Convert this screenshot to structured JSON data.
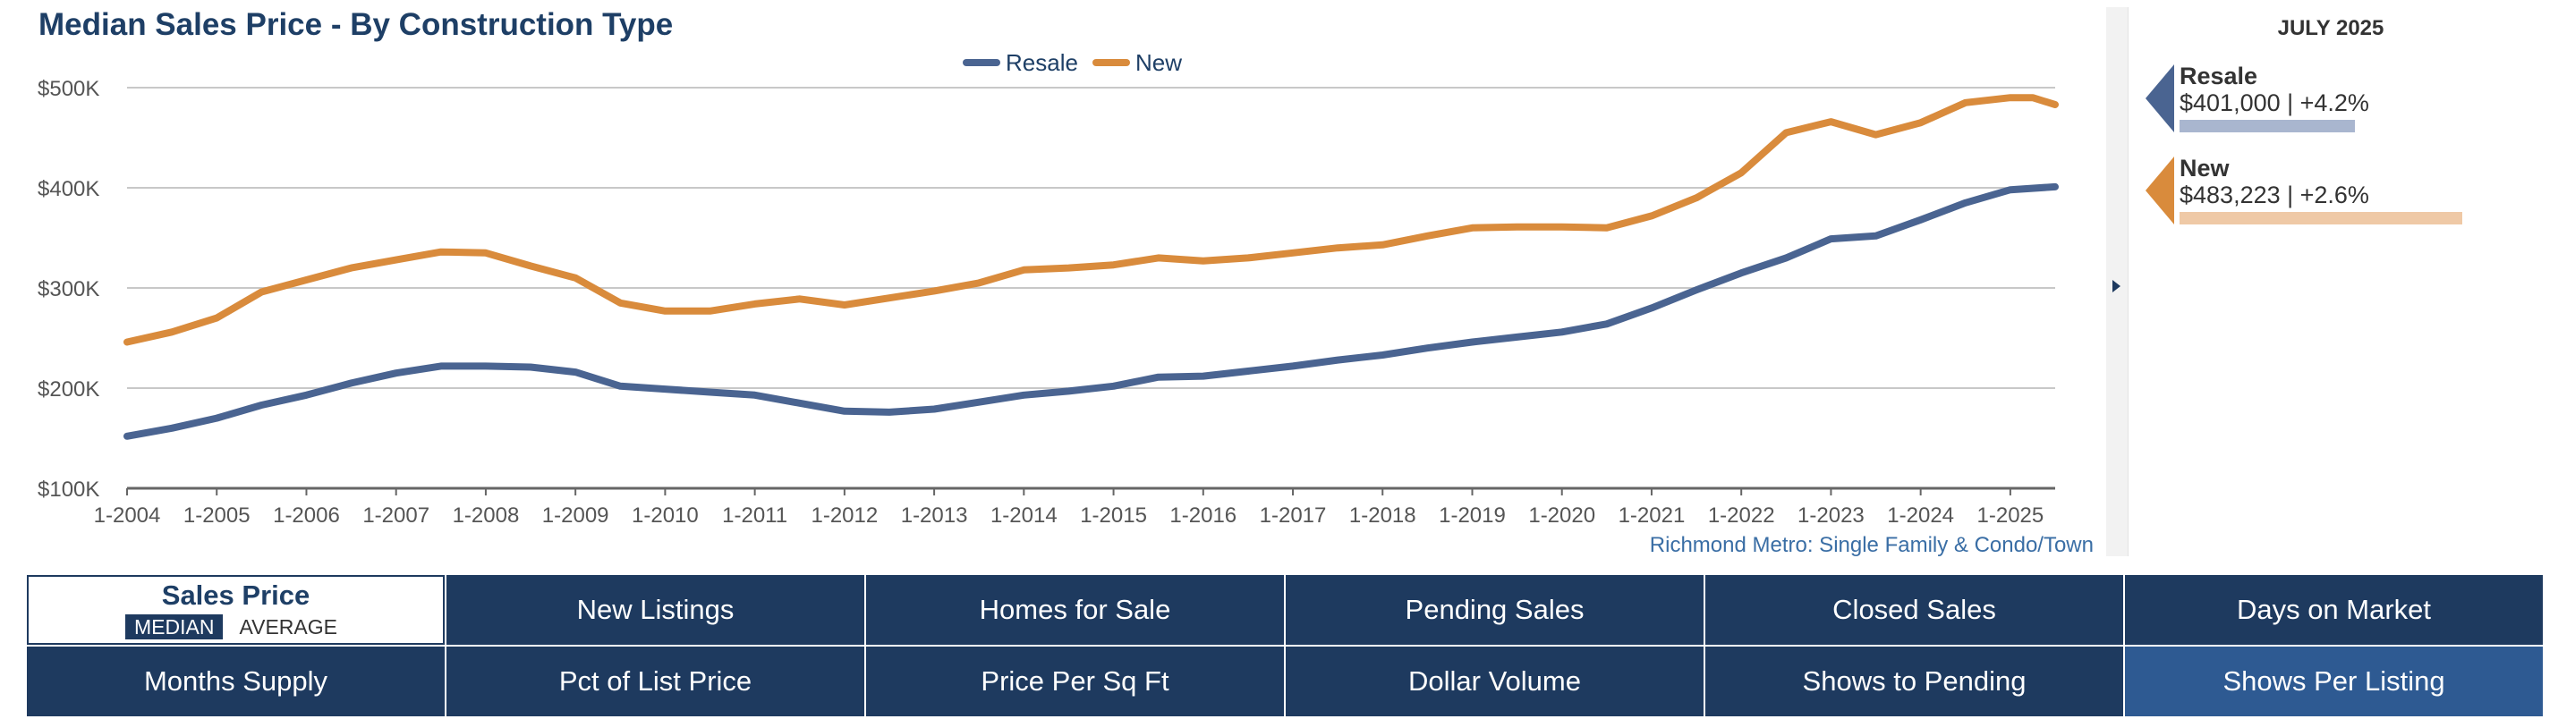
{
  "chart_data": {
    "type": "line",
    "title": "Median Sales Price - By Construction Type",
    "xlabel": "",
    "ylabel": "",
    "ylim": [
      100000,
      500000
    ],
    "y_ticks": [
      {
        "value": 100000,
        "label": "$100K"
      },
      {
        "value": 200000,
        "label": "$200K"
      },
      {
        "value": 300000,
        "label": "$300K"
      },
      {
        "value": 400000,
        "label": "$400K"
      },
      {
        "value": 500000,
        "label": "$500K"
      }
    ],
    "x_range": [
      2004.0,
      2025.5
    ],
    "x_ticks": [
      {
        "value": 2004,
        "label": "1-2004"
      },
      {
        "value": 2005,
        "label": "1-2005"
      },
      {
        "value": 2006,
        "label": "1-2006"
      },
      {
        "value": 2007,
        "label": "1-2007"
      },
      {
        "value": 2008,
        "label": "1-2008"
      },
      {
        "value": 2009,
        "label": "1-2009"
      },
      {
        "value": 2010,
        "label": "1-2010"
      },
      {
        "value": 2011,
        "label": "1-2011"
      },
      {
        "value": 2012,
        "label": "1-2012"
      },
      {
        "value": 2013,
        "label": "1-2013"
      },
      {
        "value": 2014,
        "label": "1-2014"
      },
      {
        "value": 2015,
        "label": "1-2015"
      },
      {
        "value": 2016,
        "label": "1-2016"
      },
      {
        "value": 2017,
        "label": "1-2017"
      },
      {
        "value": 2018,
        "label": "1-2018"
      },
      {
        "value": 2019,
        "label": "1-2019"
      },
      {
        "value": 2020,
        "label": "1-2020"
      },
      {
        "value": 2021,
        "label": "1-2021"
      },
      {
        "value": 2022,
        "label": "1-2022"
      },
      {
        "value": 2023,
        "label": "1-2023"
      },
      {
        "value": 2024,
        "label": "1-2024"
      },
      {
        "value": 2025,
        "label": "1-2025"
      }
    ],
    "legend": [
      {
        "name": "Resale",
        "color": "#4a6491"
      },
      {
        "name": "New",
        "color": "#d98b3c"
      }
    ],
    "series": [
      {
        "name": "Resale",
        "color": "#4a6491",
        "x": [
          2004.0,
          2004.5,
          2005.0,
          2005.5,
          2006.0,
          2006.5,
          2007.0,
          2007.5,
          2008.0,
          2008.5,
          2009.0,
          2009.5,
          2010.0,
          2010.5,
          2011.0,
          2011.5,
          2012.0,
          2012.5,
          2013.0,
          2013.5,
          2014.0,
          2014.5,
          2015.0,
          2015.5,
          2016.0,
          2016.5,
          2017.0,
          2017.5,
          2018.0,
          2018.5,
          2019.0,
          2019.5,
          2020.0,
          2020.5,
          2021.0,
          2021.5,
          2022.0,
          2022.5,
          2023.0,
          2023.5,
          2024.0,
          2024.5,
          2025.0,
          2025.5
        ],
        "values": [
          152000,
          160000,
          170000,
          183000,
          193000,
          205000,
          215000,
          222000,
          222000,
          221000,
          216000,
          202000,
          199000,
          196000,
          193000,
          185000,
          177000,
          176000,
          179000,
          186000,
          193000,
          197000,
          202000,
          211000,
          212000,
          217000,
          222000,
          228000,
          233000,
          240000,
          246000,
          251000,
          256000,
          264000,
          280000,
          298000,
          315000,
          330000,
          349000,
          352000,
          368000,
          385000,
          398000,
          401000
        ]
      },
      {
        "name": "New",
        "color": "#d98b3c",
        "x": [
          2004.0,
          2004.5,
          2005.0,
          2005.5,
          2006.0,
          2006.5,
          2007.0,
          2007.5,
          2008.0,
          2008.5,
          2009.0,
          2009.5,
          2010.0,
          2010.5,
          2011.0,
          2011.5,
          2012.0,
          2012.5,
          2013.0,
          2013.5,
          2014.0,
          2014.5,
          2015.0,
          2015.5,
          2016.0,
          2016.5,
          2017.0,
          2017.5,
          2018.0,
          2018.5,
          2019.0,
          2019.5,
          2020.0,
          2020.5,
          2021.0,
          2021.5,
          2022.0,
          2022.5,
          2023.0,
          2023.5,
          2024.0,
          2024.5,
          2025.0,
          2025.25,
          2025.5
        ],
        "values": [
          246000,
          256000,
          270000,
          296000,
          308000,
          320000,
          328000,
          336000,
          335000,
          322000,
          310000,
          285000,
          277000,
          277000,
          284000,
          289000,
          283000,
          290000,
          297000,
          305000,
          318000,
          320000,
          323000,
          330000,
          327000,
          330000,
          335000,
          340000,
          343000,
          352000,
          360000,
          361000,
          361000,
          360000,
          372000,
          390000,
          415000,
          455000,
          466000,
          453000,
          465000,
          485000,
          490000,
          490000,
          483000
        ]
      }
    ],
    "source_note": "Richmond Metro: Single Family & Condo/Town"
  },
  "summary": {
    "period": "JULY 2025",
    "items": [
      {
        "label": "Resale",
        "value_text": "$401,000 | +4.2%",
        "value": 401000,
        "change_pct": 4.2,
        "marker_color": "#4a6491",
        "bar_color": "#a9b6cf"
      },
      {
        "label": "New",
        "value_text": "$483,223 | +2.6%",
        "value": 483223,
        "change_pct": 2.6,
        "marker_color": "#d98b3c",
        "bar_color": "#efc9a6"
      }
    ]
  },
  "nav": {
    "active_tab": {
      "title": "Sales Price",
      "toggle_on": "MEDIAN",
      "toggle_off": "AVERAGE"
    },
    "tabs": [
      "New Listings",
      "Homes for Sale",
      "Pending Sales",
      "Closed Sales",
      "Days on Market",
      "Months Supply",
      "Pct of List Price",
      "Price Per Sq Ft",
      "Dollar Volume",
      "Shows to Pending",
      "Shows Per Listing"
    ],
    "highlight_tab": "Shows Per Listing"
  }
}
